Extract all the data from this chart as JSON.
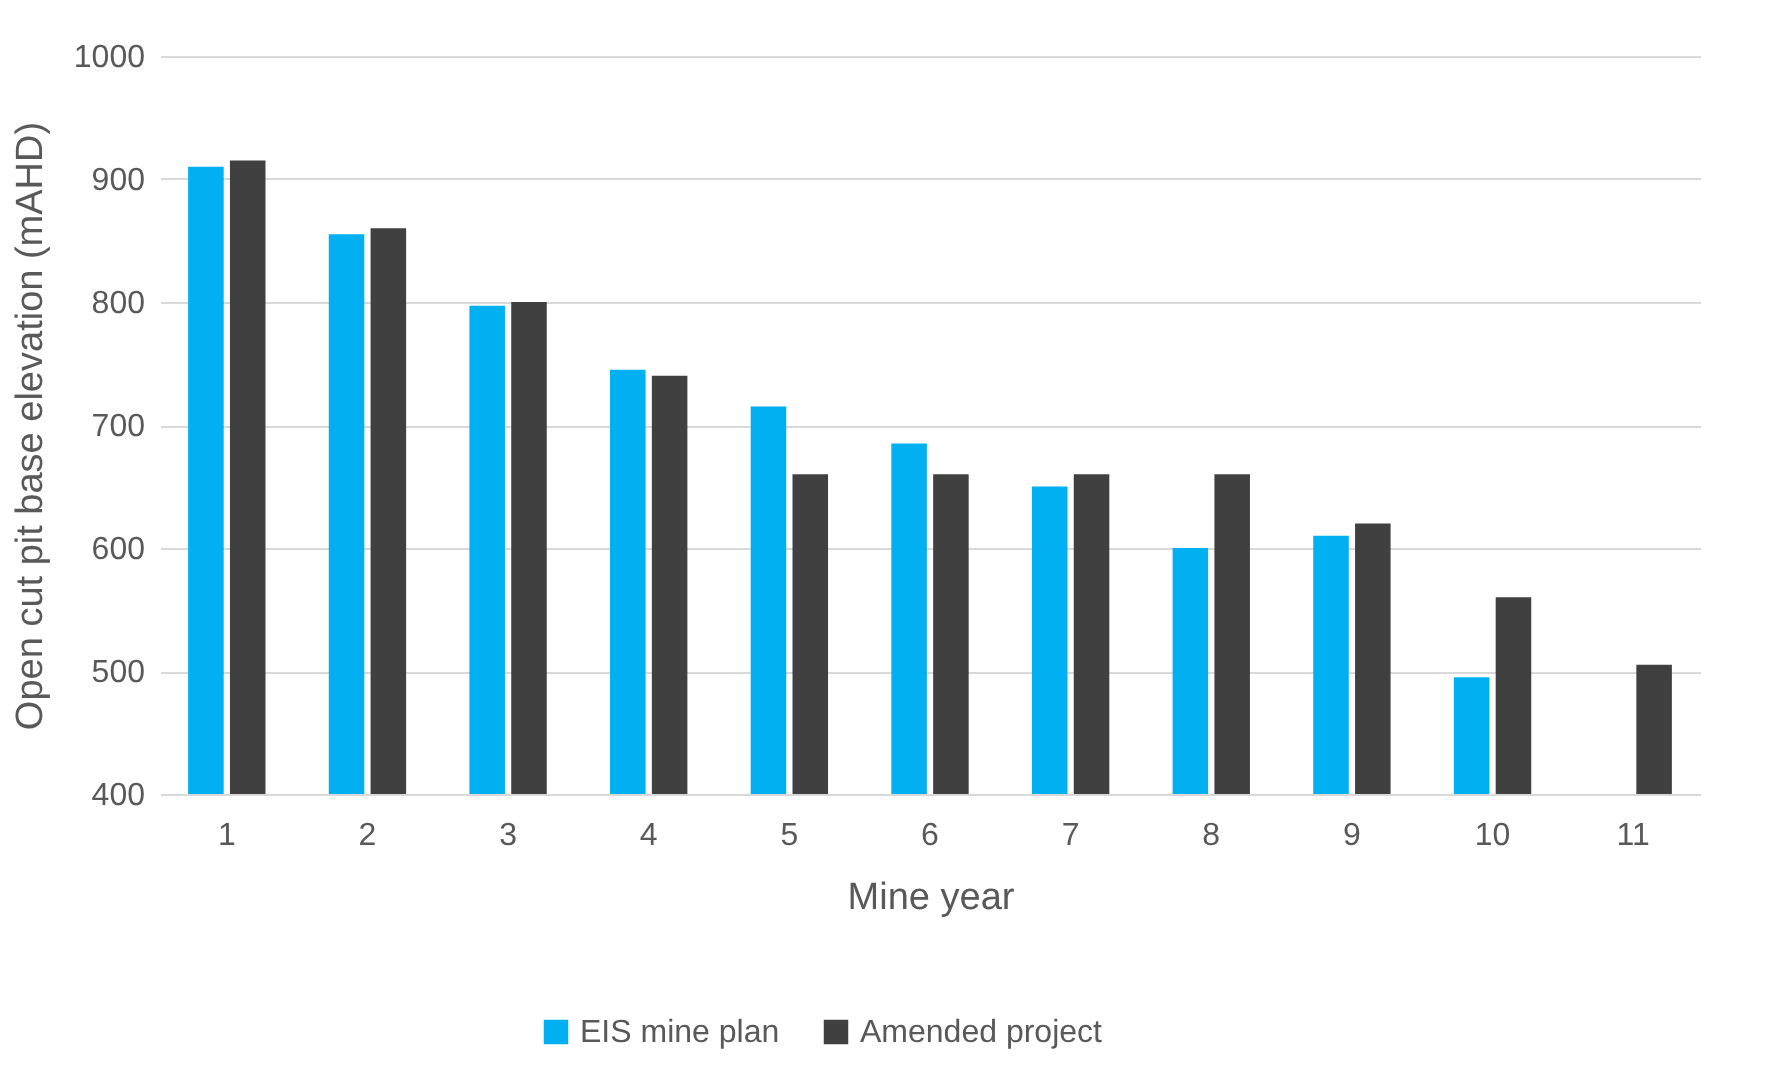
{
  "chart_data": {
    "type": "bar",
    "xlabel": "Mine year",
    "ylabel": "Open cut pit base elevation (mAHD)",
    "categories": [
      "1",
      "2",
      "3",
      "4",
      "5",
      "6",
      "7",
      "8",
      "9",
      "10",
      "11"
    ],
    "series": [
      {
        "name": "EIS mine plan",
        "color": "#00b0f0",
        "values": [
          910,
          855,
          797,
          745,
          715,
          685,
          650,
          600,
          610,
          495,
          null
        ]
      },
      {
        "name": "Amended project",
        "color": "#404040",
        "values": [
          915,
          860,
          800,
          740,
          660,
          660,
          660,
          660,
          620,
          560,
          505
        ]
      }
    ],
    "ylim": [
      400,
      1000
    ],
    "yticks": [
      400,
      500,
      600,
      700,
      800,
      900,
      1000
    ],
    "grid": "y",
    "legend": "bottom"
  }
}
